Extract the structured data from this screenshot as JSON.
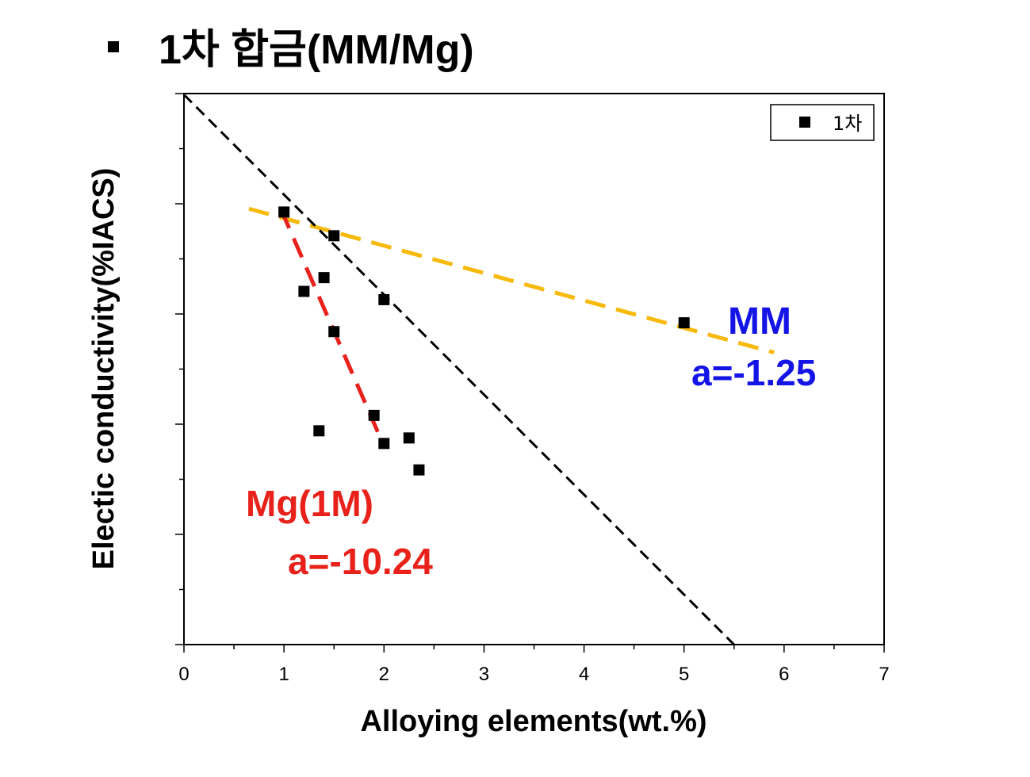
{
  "title": {
    "bullet": "▪",
    "text": "1차 합금(MM/Mg)"
  },
  "chart_data": {
    "type": "scatter",
    "xlabel": "Alloying elements(wt.%)",
    "ylabel": "Electic conductivity(%IACS)",
    "xlim": [
      0,
      7
    ],
    "x_ticks": [
      "0",
      "1",
      "2",
      "3",
      "4",
      "5",
      "6",
      "7"
    ],
    "y_tick_labels_visible": false,
    "legend": {
      "position": "top-right",
      "entries": [
        "1차"
      ]
    },
    "series": [
      {
        "name": "1차",
        "marker": "square",
        "color": "#000000",
        "points": [
          {
            "x": 1.0,
            "y": 0.785
          },
          {
            "x": 1.5,
            "y": 0.742
          },
          {
            "x": 1.2,
            "y": 0.641
          },
          {
            "x": 1.4,
            "y": 0.666
          },
          {
            "x": 2.0,
            "y": 0.626
          },
          {
            "x": 1.5,
            "y": 0.568
          },
          {
            "x": 1.9,
            "y": 0.416
          },
          {
            "x": 2.0,
            "y": 0.365
          },
          {
            "x": 2.25,
            "y": 0.375
          },
          {
            "x": 1.35,
            "y": 0.388
          },
          {
            "x": 2.35,
            "y": 0.317
          },
          {
            "x": 5.0,
            "y": 0.584
          }
        ]
      }
    ],
    "fit_lines": [
      {
        "label": "MM",
        "slope_text": "a=-1.25",
        "color": "#f7b90a",
        "style": "dashed",
        "x": [
          0.65,
          5.9
        ],
        "y": [
          0.791,
          0.53
        ]
      },
      {
        "label": "Mg(1M)",
        "slope_text": "a=-10.24",
        "color": "#e8221b",
        "style": "dashed",
        "x": [
          0.97,
          2.0
        ],
        "y": [
          0.79,
          0.36
        ]
      },
      {
        "label": "",
        "slope_text": "",
        "color": "#000000",
        "style": "dashed",
        "x": [
          0.0,
          5.5
        ],
        "y": [
          0.998,
          0.0
        ]
      }
    ],
    "annotations": [
      {
        "text": "MM",
        "color": "#1414e6"
      },
      {
        "text": "a=-1.25",
        "color": "#1414e6"
      },
      {
        "text": "Mg(1M)",
        "color": "#e8221b"
      },
      {
        "text": "a=-10.24",
        "color": "#e8221b"
      }
    ]
  }
}
